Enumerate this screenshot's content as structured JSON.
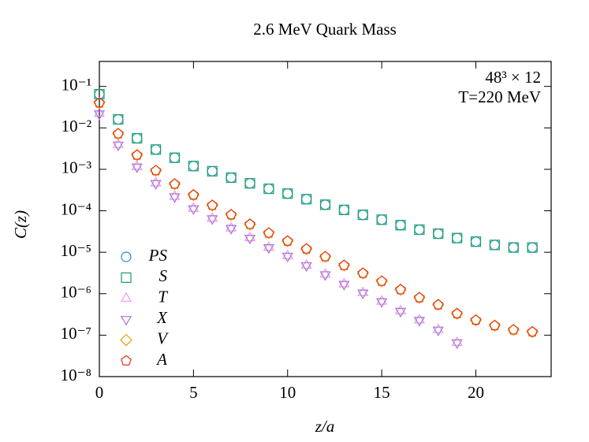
{
  "chart_data": {
    "type": "scatter",
    "title": "2.6 MeV Quark Mass",
    "xlabel": "z/a",
    "ylabel": "C(z)",
    "annotations": [
      "48³ × 12",
      "T=220 MeV"
    ],
    "yscale": "log",
    "legend": "lower left",
    "xlim": [
      0,
      24
    ],
    "ylim": [
      1e-08,
      0.4
    ],
    "xticks": [
      0,
      5,
      10,
      15,
      20
    ],
    "yticks": [
      {
        "value": 1e-08,
        "label": "10⁻⁸"
      },
      {
        "value": 1e-07,
        "label": "10⁻⁷"
      },
      {
        "value": 1e-06,
        "label": "10⁻⁶"
      },
      {
        "value": 1e-05,
        "label": "10⁻⁵"
      },
      {
        "value": 0.0001,
        "label": "10⁻⁴"
      },
      {
        "value": 0.001,
        "label": "10⁻³"
      },
      {
        "value": 0.01,
        "label": "10⁻²"
      },
      {
        "value": 0.1,
        "label": "10⁻¹"
      }
    ],
    "x": [
      0,
      1,
      2,
      3,
      4,
      5,
      6,
      7,
      8,
      9,
      10,
      11,
      12,
      13,
      14,
      15,
      16,
      17,
      18,
      19,
      20,
      21,
      22,
      23
    ],
    "series": [
      {
        "name": "PS",
        "marker": "circle",
        "color": "#1f8fcf",
        "values": [
          0.065,
          0.016,
          0.0056,
          0.003,
          0.0019,
          0.0012,
          0.0009,
          0.00063,
          0.00046,
          0.00034,
          0.00026,
          0.00019,
          0.00014,
          0.000105,
          8e-05,
          6.1e-05,
          4.5e-05,
          3.5e-05,
          2.8e-05,
          2.2e-05,
          1.8e-05,
          1.5e-05,
          1.3e-05,
          1.3e-05
        ]
      },
      {
        "name": "S",
        "marker": "square",
        "color": "#1a9e60",
        "values": [
          0.065,
          0.016,
          0.0056,
          0.003,
          0.0019,
          0.0012,
          0.0009,
          0.00063,
          0.00046,
          0.00034,
          0.00026,
          0.00019,
          0.00014,
          0.000105,
          8e-05,
          6.1e-05,
          4.5e-05,
          3.5e-05,
          2.8e-05,
          2.2e-05,
          1.8e-05,
          1.5e-05,
          1.3e-05,
          1.3e-05
        ]
      },
      {
        "name": "T",
        "marker": "triangle-up",
        "color": "#e89be8",
        "values": [
          0.022,
          0.0039,
          0.00115,
          0.00046,
          0.00022,
          0.000113,
          6.5e-05,
          3.8e-05,
          2.2e-05,
          1.3e-05,
          8.1e-06,
          4.8e-06,
          2.9e-06,
          1.7e-06,
          1.05e-06,
          6.5e-07,
          3.8e-07,
          2.3e-07,
          1.34e-07,
          6.6e-08,
          null,
          null,
          null,
          null
        ]
      },
      {
        "name": "X",
        "marker": "triangle-down",
        "color": "#a86fd6",
        "values": [
          0.022,
          0.0039,
          0.00115,
          0.00046,
          0.00022,
          0.000113,
          6.5e-05,
          3.8e-05,
          2.2e-05,
          1.3e-05,
          8.1e-06,
          4.8e-06,
          2.9e-06,
          1.7e-06,
          1.05e-06,
          6.5e-07,
          3.8e-07,
          2.3e-07,
          1.34e-07,
          6.6e-08,
          null,
          null,
          null,
          null
        ]
      },
      {
        "name": "V",
        "marker": "diamond",
        "color": "#e0a800",
        "values": [
          0.04,
          0.0072,
          0.0022,
          0.00093,
          0.00044,
          0.00024,
          0.000135,
          8e-05,
          4.7e-05,
          2.9e-05,
          1.86e-05,
          1.2e-05,
          7.8e-06,
          4.8e-06,
          3.1e-06,
          2e-06,
          1.25e-06,
          8e-07,
          5.4e-07,
          3.3e-07,
          2.3e-07,
          1.7e-07,
          1.34e-07,
          1.2e-07
        ]
      },
      {
        "name": "A",
        "marker": "pentagon",
        "color": "#e5331a",
        "values": [
          0.04,
          0.0072,
          0.0022,
          0.00093,
          0.00044,
          0.00024,
          0.000135,
          8e-05,
          4.7e-05,
          2.9e-05,
          1.86e-05,
          1.2e-05,
          7.8e-06,
          4.8e-06,
          3.1e-06,
          2e-06,
          1.25e-06,
          8e-07,
          5.4e-07,
          3.3e-07,
          2.3e-07,
          1.7e-07,
          1.34e-07,
          1.2e-07
        ]
      }
    ]
  }
}
